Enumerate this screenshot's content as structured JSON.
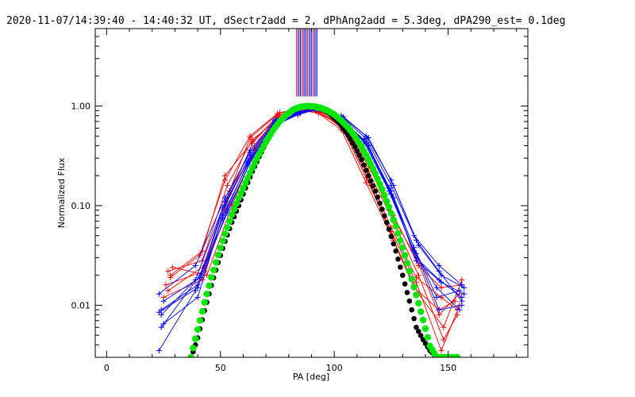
{
  "chart_data": {
    "type": "line",
    "title": "2020-11-07/14:39:40 - 14:40:32 UT, dSectr2add = 2, dPhAng2add = 5.3deg, dPA290_est=  0.1deg",
    "xlabel": "PA [deg]",
    "ylabel": "Normalized Flux",
    "xlim": [
      -5,
      185
    ],
    "ylim": [
      0.003,
      6.0
    ],
    "yscale": "log",
    "x_ticks": [
      0,
      50,
      100,
      150
    ],
    "x_tick_labels": [
      "0",
      "50",
      "100",
      "150"
    ],
    "y_ticks": [
      0.01,
      0.1,
      1.0
    ],
    "y_tick_labels": [
      "0.01",
      "0.10",
      "1.00"
    ],
    "colors": {
      "red": "#ff0000",
      "blue": "#0000ff",
      "green": "#00e600",
      "black": "#000000"
    },
    "vertical_marker_lines": {
      "x": [
        83.5,
        84.3,
        85.1,
        85.9,
        86.7,
        87.5,
        88.3,
        89.1,
        89.9,
        90.7,
        91.5,
        92.3
      ],
      "colors": [
        "red",
        "blue",
        "blue",
        "red",
        "blue",
        "blue",
        "red",
        "blue",
        "blue",
        "red",
        "blue",
        "blue"
      ],
      "y_from": 1.25,
      "y_to": 6.0
    },
    "series": [
      {
        "name": "red-1",
        "color": "red",
        "x": [
          27,
          42,
          53,
          64,
          76,
          87,
          93,
          104,
          115,
          125,
          136,
          147,
          154
        ],
        "y": [
          0.022,
          0.028,
          0.16,
          0.46,
          0.76,
          0.9,
          0.86,
          0.62,
          0.2,
          0.06,
          0.019,
          0.012,
          0.009
        ]
      },
      {
        "name": "red-2",
        "color": "red",
        "x": [
          26,
          43,
          54,
          65,
          76,
          87,
          94,
          104,
          115,
          126,
          137,
          147,
          156
        ],
        "y": [
          0.016,
          0.022,
          0.13,
          0.38,
          0.82,
          0.93,
          0.9,
          0.66,
          0.25,
          0.08,
          0.025,
          0.015,
          0.016
        ]
      },
      {
        "name": "red-3",
        "color": "red",
        "x": [
          28,
          41,
          52,
          63,
          75,
          86,
          92,
          103,
          114,
          125,
          135,
          146,
          153
        ],
        "y": [
          0.019,
          0.032,
          0.18,
          0.5,
          0.84,
          0.95,
          0.88,
          0.58,
          0.17,
          0.05,
          0.015,
          0.009,
          0.011
        ]
      },
      {
        "name": "red-4",
        "color": "red",
        "x": [
          25,
          42,
          53,
          64,
          75,
          86,
          93,
          103,
          114,
          124,
          136,
          146,
          155
        ],
        "y": [
          0.012,
          0.018,
          0.11,
          0.42,
          0.8,
          0.94,
          0.91,
          0.68,
          0.3,
          0.09,
          0.03,
          0.008,
          0.013
        ]
      },
      {
        "name": "red-5",
        "color": "red",
        "x": [
          29,
          44,
          55,
          65,
          77,
          88,
          94,
          105,
          116,
          126,
          137,
          148,
          156
        ],
        "y": [
          0.024,
          0.02,
          0.1,
          0.36,
          0.72,
          0.92,
          0.87,
          0.56,
          0.16,
          0.045,
          0.013,
          0.006,
          0.018
        ]
      },
      {
        "name": "red-6",
        "color": "red",
        "x": [
          27,
          43,
          54,
          63,
          76,
          87,
          92,
          104,
          115,
          126,
          137,
          148,
          154
        ],
        "y": [
          0.014,
          0.025,
          0.14,
          0.48,
          0.86,
          0.96,
          0.92,
          0.62,
          0.22,
          0.07,
          0.02,
          0.0045,
          0.008
        ]
      },
      {
        "name": "red-7",
        "color": "red",
        "x": [
          28,
          42,
          52,
          64,
          75,
          86,
          93,
          103,
          114,
          125,
          136,
          147,
          155
        ],
        "y": [
          0.02,
          0.035,
          0.2,
          0.44,
          0.78,
          0.9,
          0.85,
          0.64,
          0.19,
          0.055,
          0.017,
          0.0035,
          0.01
        ]
      },
      {
        "name": "blue-1",
        "color": "blue",
        "x": [
          24,
          39,
          52,
          63,
          74,
          84,
          92,
          103,
          114,
          125,
          136,
          146,
          156
        ],
        "y": [
          0.008,
          0.018,
          0.11,
          0.36,
          0.72,
          0.86,
          0.94,
          0.74,
          0.42,
          0.13,
          0.03,
          0.018,
          0.012
        ]
      },
      {
        "name": "blue-2",
        "color": "blue",
        "x": [
          23,
          40,
          53,
          64,
          75,
          85,
          93,
          104,
          115,
          126,
          137,
          147,
          157
        ],
        "y": [
          0.0085,
          0.015,
          0.09,
          0.3,
          0.66,
          0.84,
          0.93,
          0.78,
          0.48,
          0.16,
          0.04,
          0.02,
          0.015
        ]
      },
      {
        "name": "blue-3",
        "color": "blue",
        "x": [
          24,
          41,
          52,
          63,
          74,
          84,
          91,
          102,
          113,
          124,
          135,
          145,
          155
        ],
        "y": [
          0.006,
          0.02,
          0.1,
          0.32,
          0.7,
          0.88,
          0.95,
          0.76,
          0.44,
          0.14,
          0.035,
          0.015,
          0.009
        ]
      },
      {
        "name": "blue-4",
        "color": "blue",
        "x": [
          25,
          40,
          51,
          62,
          73,
          84,
          92,
          103,
          114,
          125,
          136,
          146,
          156
        ],
        "y": [
          0.0065,
          0.012,
          0.08,
          0.26,
          0.62,
          0.82,
          0.92,
          0.8,
          0.5,
          0.18,
          0.045,
          0.022,
          0.011
        ]
      },
      {
        "name": "blue-5",
        "color": "blue",
        "x": [
          23,
          39,
          52,
          63,
          74,
          85,
          93,
          104,
          115,
          126,
          136,
          147,
          157
        ],
        "y": [
          0.013,
          0.025,
          0.12,
          0.34,
          0.74,
          0.87,
          0.94,
          0.72,
          0.4,
          0.12,
          0.028,
          0.017,
          0.013
        ]
      },
      {
        "name": "blue-6",
        "color": "blue",
        "x": [
          24,
          40,
          51,
          62,
          73,
          84,
          91,
          102,
          113,
          124,
          135,
          145,
          155
        ],
        "y": [
          0.009,
          0.016,
          0.095,
          0.28,
          0.64,
          0.83,
          0.93,
          0.77,
          0.46,
          0.15,
          0.038,
          0.012,
          0.014
        ]
      },
      {
        "name": "blue-7",
        "color": "blue",
        "x": [
          25,
          41,
          53,
          64,
          75,
          85,
          92,
          103,
          114,
          125,
          136,
          146,
          156
        ],
        "y": [
          0.011,
          0.019,
          0.085,
          0.31,
          0.68,
          0.85,
          0.95,
          0.75,
          0.43,
          0.14,
          0.033,
          0.009,
          0.01
        ]
      },
      {
        "name": "blue-8",
        "color": "blue",
        "x": [
          23,
          39,
          51,
          62,
          74,
          84,
          92,
          103,
          114,
          125,
          135,
          146,
          156
        ],
        "y": [
          0.0035,
          0.014,
          0.075,
          0.27,
          0.66,
          0.86,
          0.94,
          0.79,
          0.47,
          0.16,
          0.05,
          0.025,
          0.016
        ]
      },
      {
        "name": "black-fit",
        "color": "black",
        "dotted": true,
        "x": [
          37,
          40,
          43,
          46,
          49,
          52,
          55,
          58,
          61,
          64,
          67,
          70,
          73,
          76,
          79,
          82,
          85,
          88,
          91,
          94,
          97,
          100,
          103,
          106,
          109,
          112,
          115,
          118,
          121,
          124,
          127,
          130,
          133,
          136,
          139,
          142,
          145,
          148,
          151,
          154
        ],
        "y": [
          0.0029,
          0.0047,
          0.0088,
          0.0158,
          0.0269,
          0.0438,
          0.0681,
          0.1,
          0.15,
          0.22,
          0.31,
          0.43,
          0.56,
          0.69,
          0.81,
          0.91,
          0.97,
          1.0,
          0.99,
          0.95,
          0.87,
          0.76,
          0.64,
          0.51,
          0.39,
          0.29,
          0.2,
          0.14,
          0.092,
          0.058,
          0.035,
          0.02,
          0.011,
          0.006,
          0.0045,
          0.0035,
          0.003,
          0.003,
          0.003,
          0.003
        ]
      },
      {
        "name": "green-fit",
        "color": "green",
        "dotted": true,
        "x": [
          37,
          40,
          43,
          46,
          49,
          52,
          55,
          58,
          61,
          64,
          67,
          70,
          73,
          76,
          79,
          82,
          85,
          88,
          91,
          94,
          97,
          100,
          103,
          106,
          109,
          112,
          115,
          118,
          121,
          124,
          127,
          130,
          133,
          136,
          139,
          142,
          145,
          148,
          151,
          154
        ],
        "y": [
          0.003,
          0.0057,
          0.0107,
          0.019,
          0.032,
          0.052,
          0.081,
          0.119,
          0.17,
          0.24,
          0.33,
          0.44,
          0.57,
          0.7,
          0.82,
          0.92,
          0.98,
          1.0,
          0.99,
          0.96,
          0.9,
          0.82,
          0.72,
          0.61,
          0.5,
          0.39,
          0.29,
          0.21,
          0.146,
          0.097,
          0.062,
          0.038,
          0.022,
          0.0127,
          0.0071,
          0.0039,
          0.003,
          0.003,
          0.003,
          0.003
        ]
      }
    ]
  }
}
